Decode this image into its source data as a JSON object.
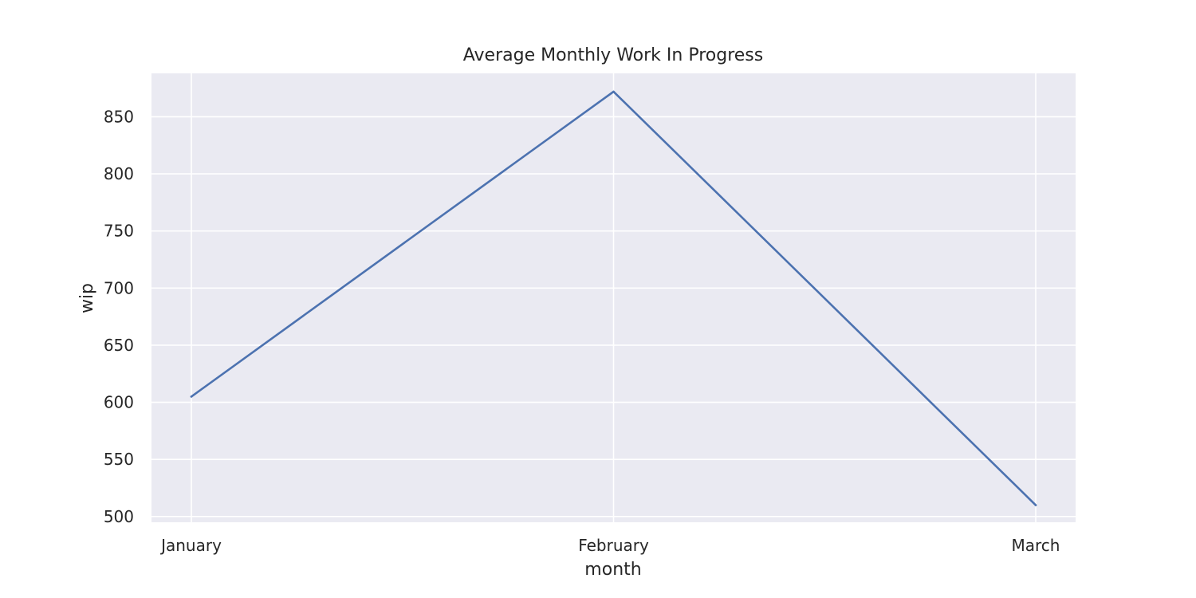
{
  "chart_data": {
    "type": "line",
    "title": "Average Monthly Work In Progress",
    "xlabel": "month",
    "ylabel": "wip",
    "categories": [
      "January",
      "February",
      "March"
    ],
    "series": [
      {
        "values": [
          605,
          872,
          510
        ],
        "color": "#4c72b0"
      }
    ],
    "ylim": [
      495,
      888
    ],
    "yticks": [
      500,
      550,
      600,
      650,
      700,
      750,
      800,
      850
    ],
    "grid": true,
    "background_color": "#eaeaf2",
    "grid_color": "#ffffff"
  }
}
